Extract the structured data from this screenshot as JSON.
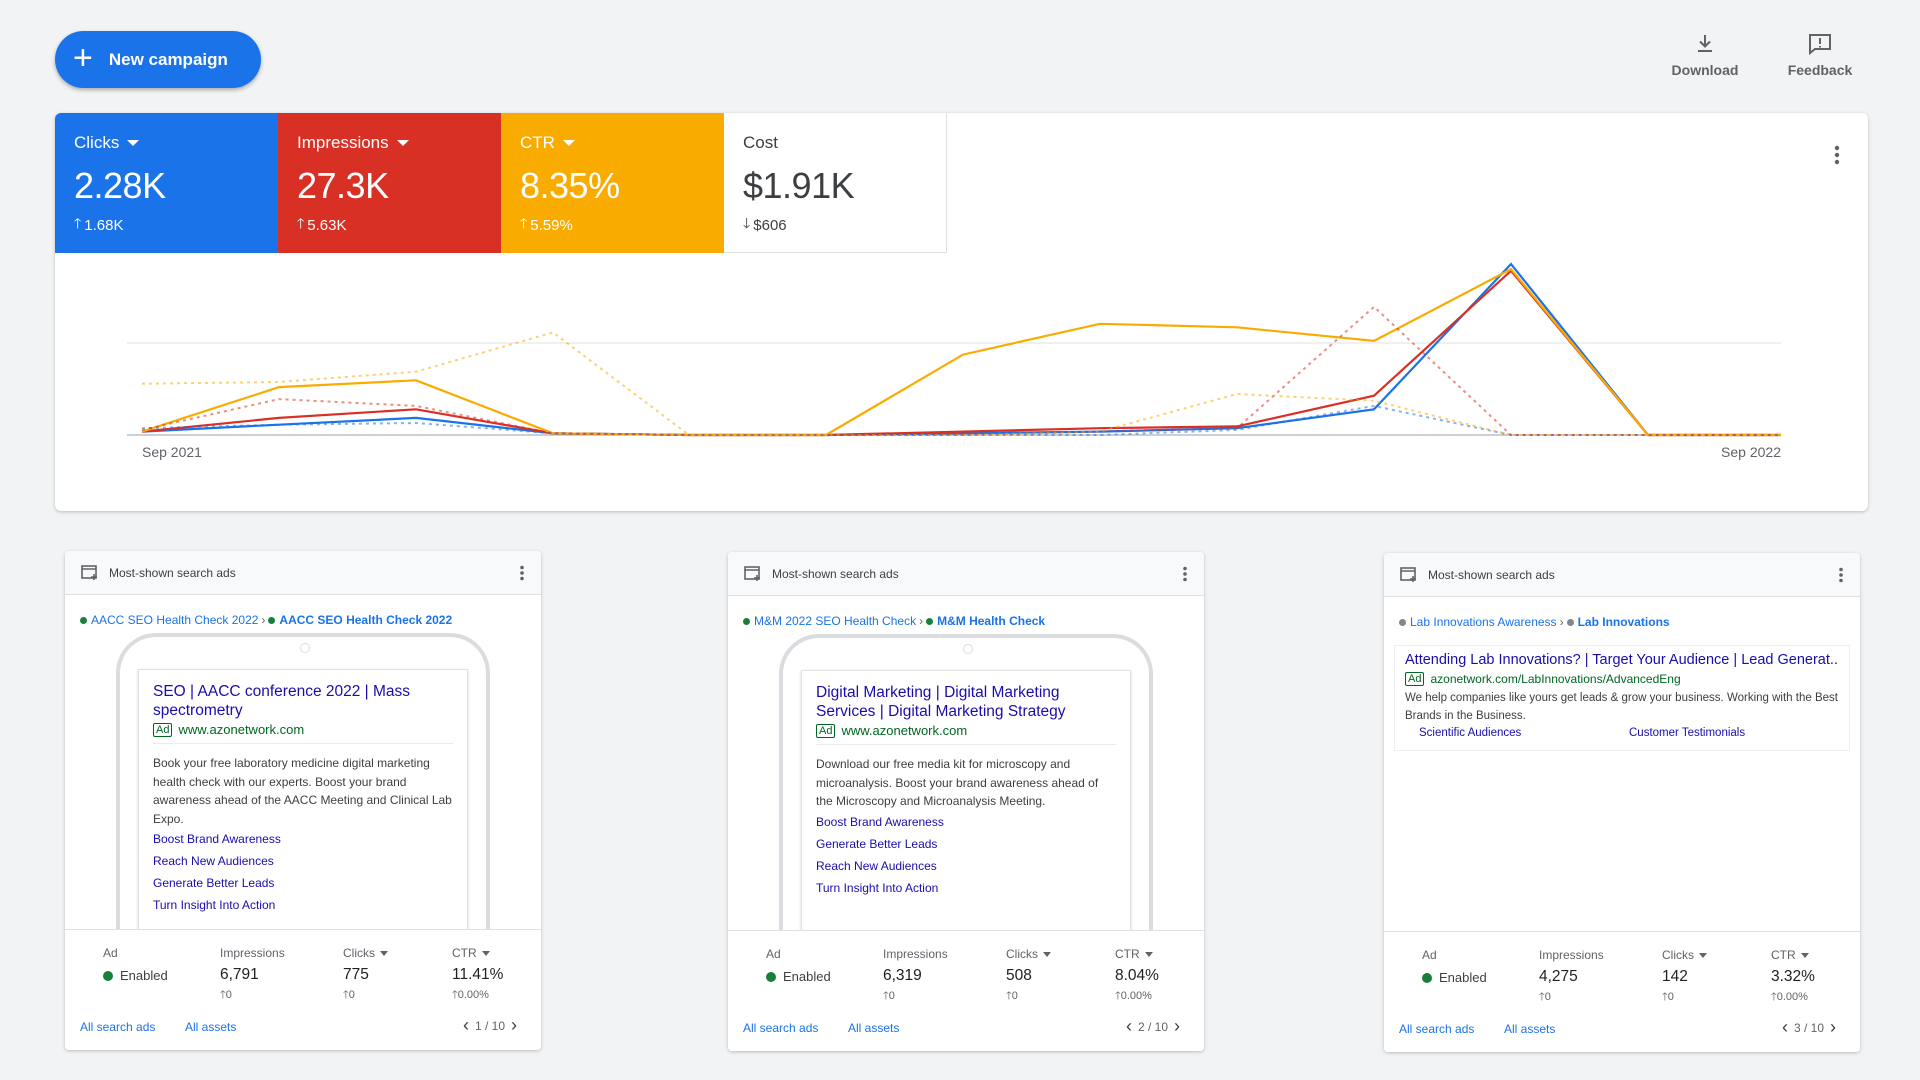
{
  "toolbar": {
    "new_campaign": "New campaign",
    "download": "Download",
    "feedback": "Feedback"
  },
  "metrics": [
    {
      "label": "Clicks",
      "value": "2.28K",
      "change": "1.68K",
      "direction": "up",
      "color": "#1a73e8"
    },
    {
      "label": "Impressions",
      "value": "27.3K",
      "change": "5.63K",
      "direction": "up",
      "color": "#d93025"
    },
    {
      "label": "CTR",
      "value": "8.35%",
      "change": "5.59%",
      "direction": "up",
      "color": "#f9ab00"
    },
    {
      "label": "Cost",
      "value": "$1.91K",
      "change": "$606",
      "direction": "down",
      "color": "#ffffff"
    }
  ],
  "chart_data": {
    "type": "line",
    "x_start_label": "Sep 2021",
    "x_end_label": "Sep 2022",
    "grid": true,
    "series": [
      {
        "metric": "Clicks",
        "color": "#1a73e8",
        "values": [
          0.02,
          0.06,
          0.1,
          0.01,
          0,
          0,
          0.01,
          0.02,
          0.04,
          0.15,
          1.0,
          0,
          0
        ]
      },
      {
        "metric": "Impressions",
        "color": "#d93025",
        "values": [
          0.02,
          0.1,
          0.15,
          0.01,
          0,
          0,
          0.02,
          0.04,
          0.05,
          0.23,
          0.96,
          0,
          0
        ]
      },
      {
        "metric": "CTR",
        "color": "#f9ab00",
        "values": [
          0.02,
          0.28,
          0.32,
          0.01,
          0,
          0,
          0.47,
          0.65,
          0.63,
          0.55,
          0.97,
          0,
          0
        ]
      },
      {
        "metric": "Clicks (previous period)",
        "color": "#1a73e8",
        "dashed": true,
        "values": [
          0.04,
          0.06,
          0.07,
          0.01,
          0,
          0,
          0,
          0,
          0.03,
          0.17,
          0,
          0,
          0
        ]
      },
      {
        "metric": "Impressions (previous period)",
        "color": "#d93025",
        "dashed": true,
        "values": [
          0.03,
          0.21,
          0.17,
          0.01,
          0,
          0,
          0,
          0.02,
          0.04,
          0.75,
          0,
          0,
          0
        ]
      },
      {
        "metric": "CTR (previous period)",
        "color": "#f9ab00",
        "dashed": true,
        "values": [
          0.3,
          0.31,
          0.37,
          0.6,
          0,
          0,
          0,
          0.02,
          0.24,
          0.2,
          0,
          0,
          0
        ]
      }
    ]
  },
  "ad_cards": [
    {
      "header": "Most-shown search ads",
      "campaign": "AACC SEO Health Check 2022",
      "ad_group": "AACC SEO Health Check 2022",
      "title": "SEO | AACC conference 2022 | Mass spectrometry",
      "badge": "Ad",
      "url": "www.azonetwork.com",
      "description": "Book your free laboratory medicine digital marketing health check with our experts. Boost your brand awareness ahead of the AACC Meeting and Clinical Lab Expo.",
      "sitelinks": [
        "Boost Brand Awareness",
        "Reach New Audiences",
        "Generate Better Leads",
        "Turn Insight Into Action"
      ],
      "stats": {
        "ad_label": "Ad",
        "status": "Enabled",
        "impressions_label": "Impressions",
        "impressions": "6,791",
        "impressions_change": "0",
        "clicks_label": "Clicks",
        "clicks": "775",
        "clicks_change": "0",
        "ctr_label": "CTR",
        "ctr": "11.41%",
        "ctr_change": "0.00%"
      },
      "links": {
        "all_ads": "All search ads",
        "all_assets": "All assets"
      },
      "page": "1 / 10"
    },
    {
      "header": "Most-shown search ads",
      "campaign": "M&M 2022 SEO Health Check",
      "ad_group": "M&M Health Check",
      "title": "Digital Marketing | Digital Marketing Services | Digital Marketing Strategy",
      "badge": "Ad",
      "url": "www.azonetwork.com",
      "description": "Download our free media kit for microscopy and microanalysis. Boost your brand awareness ahead of the Microscopy and Microanalysis Meeting.",
      "sitelinks": [
        "Boost Brand Awareness",
        "Generate Better Leads",
        "Reach New Audiences",
        "Turn Insight Into Action"
      ],
      "stats": {
        "ad_label": "Ad",
        "status": "Enabled",
        "impressions_label": "Impressions",
        "impressions": "6,319",
        "impressions_change": "0",
        "clicks_label": "Clicks",
        "clicks": "508",
        "clicks_change": "0",
        "ctr_label": "CTR",
        "ctr": "8.04%",
        "ctr_change": "0.00%"
      },
      "links": {
        "all_ads": "All search ads",
        "all_assets": "All assets"
      },
      "page": "2 / 10"
    },
    {
      "header": "Most-shown search ads",
      "campaign": "Lab Innovations Awareness",
      "ad_group": "Lab Innovations",
      "title": "Attending Lab Innovations? | Target Your Audience | Lead Generat...",
      "badge": "Ad",
      "url": "azonetwork.com/LabInnovations/AdvancedEng",
      "description": "We help companies like yours get leads & grow your business. Working with the Best Brands in the Business.",
      "sitelinks": [
        "Scientific Audiences",
        "Customer Testimonials"
      ],
      "stats": {
        "ad_label": "Ad",
        "status": "Enabled",
        "impressions_label": "Impressions",
        "impressions": "4,275",
        "impressions_change": "0",
        "clicks_label": "Clicks",
        "clicks": "142",
        "clicks_change": "0",
        "ctr_label": "CTR",
        "ctr": "3.32%",
        "ctr_change": "0.00%"
      },
      "links": {
        "all_ads": "All search ads",
        "all_assets": "All assets"
      },
      "page": "3 / 10"
    }
  ]
}
